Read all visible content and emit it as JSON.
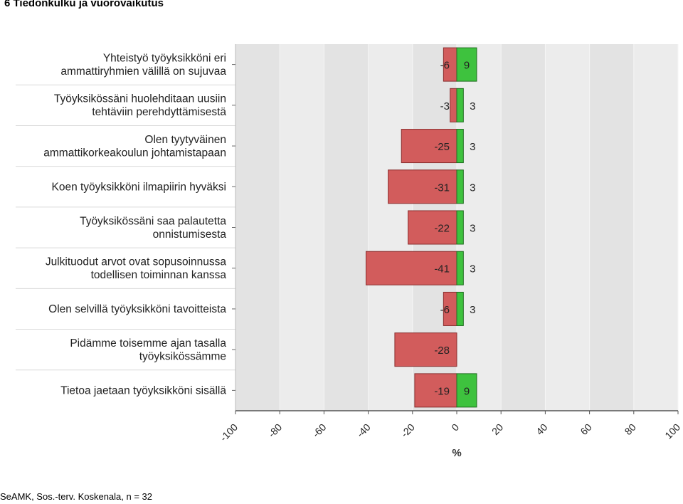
{
  "page": {
    "title": "6 Tiedonkulku ja vuorovaikutus",
    "footer": "SeAMK, Sos.-terv. Koskenala, n = 32"
  },
  "chart_data": {
    "type": "bar",
    "orientation": "horizontal",
    "stacked": true,
    "categories": [
      [
        "Yhteistyö työyksikköni eri",
        "ammattiryhmien välillä on sujuvaa"
      ],
      [
        "Työyksikössäni huolehditaan uusiin",
        "tehtäviin perehdyttämisestä"
      ],
      [
        "Olen tyytyväinen",
        "ammattikorkeakoulun johtamistapaan"
      ],
      [
        "Koen työyksikköni ilmapiirin hyväksi"
      ],
      [
        "Työyksikössäni saa palautetta",
        "onnistumisesta"
      ],
      [
        "Julkituodut arvot ovat sopusoinnussa",
        "todellisen toiminnan kanssa"
      ],
      [
        "Olen selvillä työyksikköni tavoitteista"
      ],
      [
        "Pidämme toisemme ajan tasalla",
        "työyksikössämme"
      ],
      [
        "Tietoa jaetaan työyksikköni sisällä"
      ]
    ],
    "series": [
      {
        "values": [
          -6,
          -3,
          -25,
          -31,
          -22,
          -41,
          -6,
          -28,
          -19
        ],
        "color": "#d25c5c"
      },
      {
        "values": [
          9,
          3,
          3,
          3,
          3,
          3,
          3,
          0,
          9
        ],
        "color": "#3ec23e"
      }
    ],
    "xlim": [
      -100,
      100
    ],
    "xticks": [
      "-100",
      "-80",
      "-60",
      "-40",
      "-20",
      "0",
      "20",
      "40",
      "60",
      "80",
      "100"
    ],
    "xlabel": "%",
    "grid": "vertical bands",
    "background_bands": [
      "#e3e3e3",
      "#ececec"
    ]
  }
}
